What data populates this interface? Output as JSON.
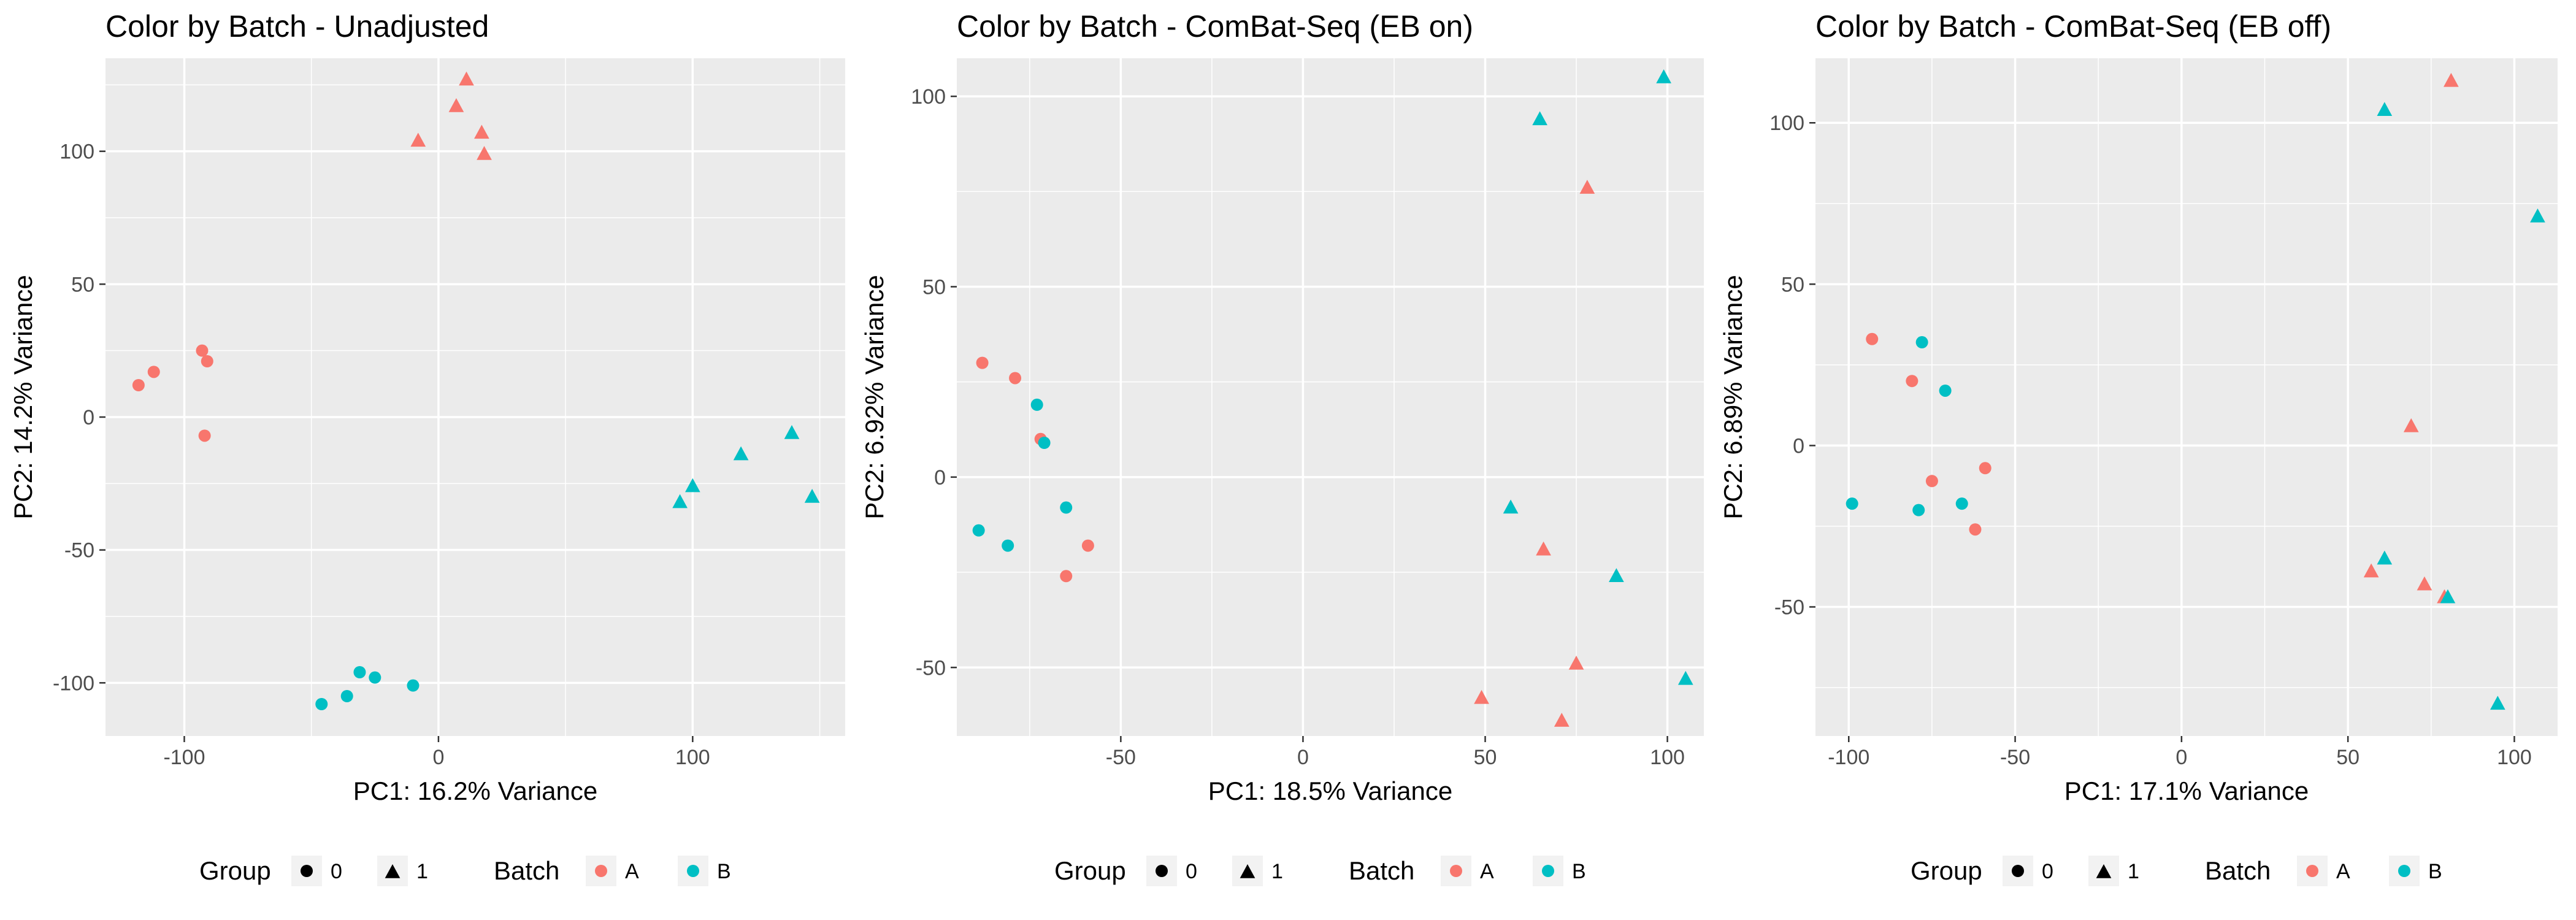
{
  "colors": {
    "A": "#F8766D",
    "B": "#00BFC4",
    "panel": "#EBEBEB",
    "grid": "#FFFFFF",
    "legend_key": "#F2F2F2"
  },
  "legend": {
    "group_title": "Group",
    "group_levels": [
      "0",
      "1"
    ],
    "batch_title": "Batch",
    "batch_levels": [
      "A",
      "B"
    ]
  },
  "chart_data": [
    {
      "type": "scatter",
      "title": "Color by Batch - Unadjusted",
      "xlabel": "PC1: 16.2% Variance",
      "ylabel": "PC2: 14.2% Variance",
      "xlim": [
        -131,
        160
      ],
      "ylim": [
        -120,
        135
      ],
      "xticks": [
        -100,
        0,
        100
      ],
      "yticks": [
        -100,
        -50,
        0,
        50,
        100
      ],
      "points": [
        {
          "x": -118,
          "y": 12,
          "batch": "A",
          "group": "0"
        },
        {
          "x": -112,
          "y": 17,
          "batch": "A",
          "group": "0"
        },
        {
          "x": -93,
          "y": 25,
          "batch": "A",
          "group": "0"
        },
        {
          "x": -91,
          "y": 21,
          "batch": "A",
          "group": "0"
        },
        {
          "x": -92,
          "y": -7,
          "batch": "A",
          "group": "0"
        },
        {
          "x": -46,
          "y": -108,
          "batch": "B",
          "group": "0"
        },
        {
          "x": -36,
          "y": -105,
          "batch": "B",
          "group": "0"
        },
        {
          "x": -31,
          "y": -96,
          "batch": "B",
          "group": "0"
        },
        {
          "x": -25,
          "y": -98,
          "batch": "B",
          "group": "0"
        },
        {
          "x": -10,
          "y": -101,
          "batch": "B",
          "group": "0"
        },
        {
          "x": -8,
          "y": 104,
          "batch": "A",
          "group": "1"
        },
        {
          "x": 7,
          "y": 117,
          "batch": "A",
          "group": "1"
        },
        {
          "x": 11,
          "y": 127,
          "batch": "A",
          "group": "1"
        },
        {
          "x": 17,
          "y": 107,
          "batch": "A",
          "group": "1"
        },
        {
          "x": 18,
          "y": 99,
          "batch": "A",
          "group": "1"
        },
        {
          "x": 95,
          "y": -32,
          "batch": "B",
          "group": "1"
        },
        {
          "x": 100,
          "y": -26,
          "batch": "B",
          "group": "1"
        },
        {
          "x": 119,
          "y": -14,
          "batch": "B",
          "group": "1"
        },
        {
          "x": 139,
          "y": -6,
          "batch": "B",
          "group": "1"
        },
        {
          "x": 147,
          "y": -30,
          "batch": "B",
          "group": "1"
        }
      ]
    },
    {
      "type": "scatter",
      "title": "Color by Batch - ComBat-Seq (EB on)",
      "xlabel": "PC1: 18.5% Variance",
      "ylabel": "PC2: 6.92% Variance",
      "xlim": [
        -95,
        110
      ],
      "ylim": [
        -68,
        110
      ],
      "xticks": [
        -50,
        0,
        50,
        100
      ],
      "yticks": [
        -50,
        0,
        50,
        100
      ],
      "points": [
        {
          "x": -88,
          "y": 30,
          "batch": "A",
          "group": "0"
        },
        {
          "x": -79,
          "y": 26,
          "batch": "A",
          "group": "0"
        },
        {
          "x": -73,
          "y": 19,
          "batch": "B",
          "group": "0"
        },
        {
          "x": -72,
          "y": 10,
          "batch": "A",
          "group": "0"
        },
        {
          "x": -71,
          "y": 9,
          "batch": "B",
          "group": "0"
        },
        {
          "x": -89,
          "y": -14,
          "batch": "B",
          "group": "0"
        },
        {
          "x": -81,
          "y": -18,
          "batch": "B",
          "group": "0"
        },
        {
          "x": -65,
          "y": -8,
          "batch": "B",
          "group": "0"
        },
        {
          "x": -65,
          "y": -26,
          "batch": "A",
          "group": "0"
        },
        {
          "x": -59,
          "y": -18,
          "batch": "A",
          "group": "0"
        },
        {
          "x": 65,
          "y": 94,
          "batch": "B",
          "group": "1"
        },
        {
          "x": 99,
          "y": 105,
          "batch": "B",
          "group": "1"
        },
        {
          "x": 78,
          "y": 76,
          "batch": "A",
          "group": "1"
        },
        {
          "x": 57,
          "y": -8,
          "batch": "B",
          "group": "1"
        },
        {
          "x": 66,
          "y": -19,
          "batch": "A",
          "group": "1"
        },
        {
          "x": 86,
          "y": -26,
          "batch": "B",
          "group": "1"
        },
        {
          "x": 75,
          "y": -49,
          "batch": "A",
          "group": "1"
        },
        {
          "x": 49,
          "y": -58,
          "batch": "A",
          "group": "1"
        },
        {
          "x": 71,
          "y": -64,
          "batch": "A",
          "group": "1"
        },
        {
          "x": 105,
          "y": -53,
          "batch": "B",
          "group": "1"
        }
      ]
    },
    {
      "type": "scatter",
      "title": "Color by Batch - ComBat-Seq (EB off)",
      "xlabel": "PC1: 17.1% Variance",
      "ylabel": "PC2: 6.89% Variance",
      "xlim": [
        -110,
        113
      ],
      "ylim": [
        -90,
        120
      ],
      "xticks": [
        -100,
        -50,
        0,
        50,
        100
      ],
      "yticks": [
        -50,
        0,
        50,
        100
      ],
      "points": [
        {
          "x": -93,
          "y": 33,
          "batch": "A",
          "group": "0"
        },
        {
          "x": -78,
          "y": 32,
          "batch": "B",
          "group": "0"
        },
        {
          "x": -81,
          "y": 20,
          "batch": "A",
          "group": "0"
        },
        {
          "x": -71,
          "y": 17,
          "batch": "B",
          "group": "0"
        },
        {
          "x": -75,
          "y": -11,
          "batch": "A",
          "group": "0"
        },
        {
          "x": -59,
          "y": -7,
          "batch": "A",
          "group": "0"
        },
        {
          "x": -99,
          "y": -18,
          "batch": "B",
          "group": "0"
        },
        {
          "x": -79,
          "y": -20,
          "batch": "B",
          "group": "0"
        },
        {
          "x": -66,
          "y": -18,
          "batch": "B",
          "group": "0"
        },
        {
          "x": -62,
          "y": -26,
          "batch": "A",
          "group": "0"
        },
        {
          "x": 61,
          "y": 104,
          "batch": "B",
          "group": "1"
        },
        {
          "x": 81,
          "y": 113,
          "batch": "A",
          "group": "1"
        },
        {
          "x": 107,
          "y": 71,
          "batch": "B",
          "group": "1"
        },
        {
          "x": 69,
          "y": 6,
          "batch": "A",
          "group": "1"
        },
        {
          "x": 61,
          "y": -35,
          "batch": "B",
          "group": "1"
        },
        {
          "x": 57,
          "y": -39,
          "batch": "A",
          "group": "1"
        },
        {
          "x": 73,
          "y": -43,
          "batch": "A",
          "group": "1"
        },
        {
          "x": 79,
          "y": -47,
          "batch": "A",
          "group": "1"
        },
        {
          "x": 80,
          "y": -47,
          "batch": "B",
          "group": "1"
        },
        {
          "x": 95,
          "y": -80,
          "batch": "B",
          "group": "1"
        }
      ]
    }
  ]
}
